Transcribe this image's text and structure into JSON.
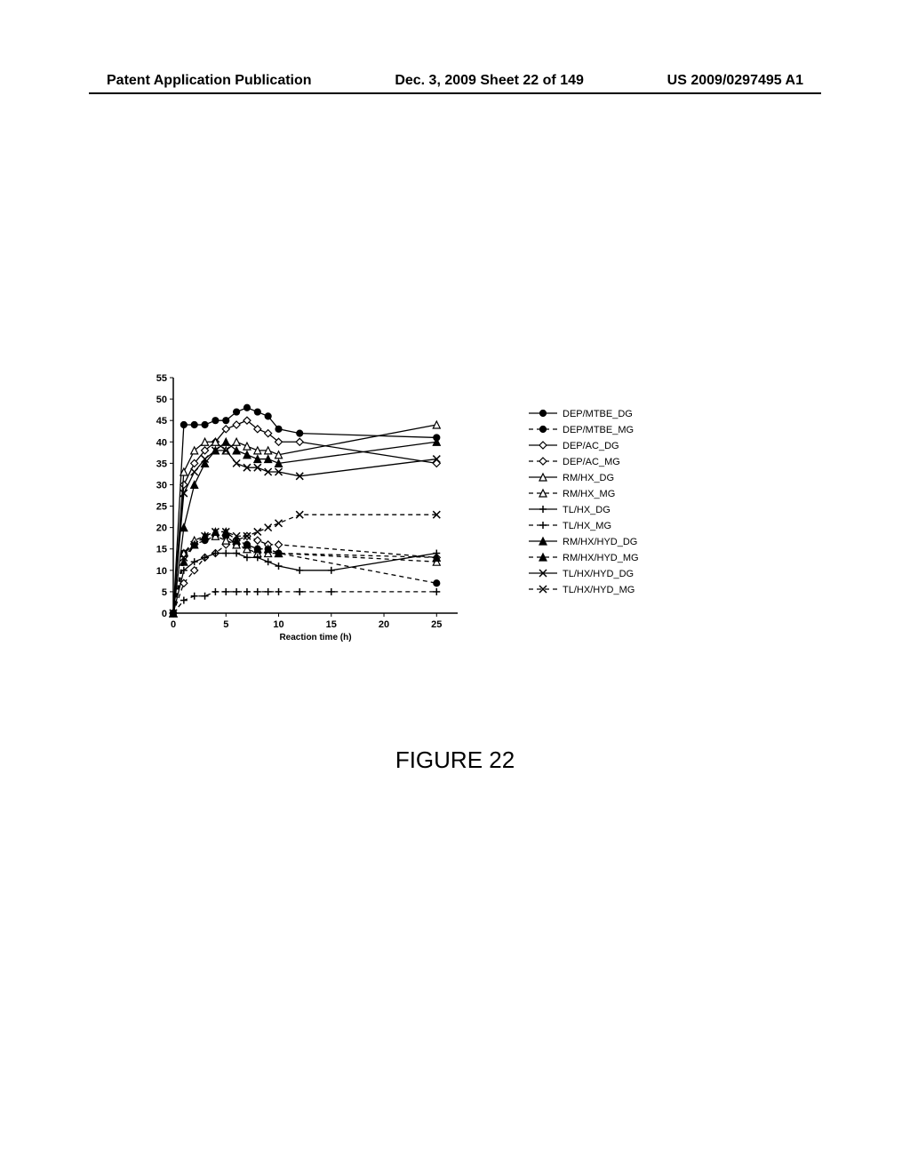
{
  "header": {
    "left": "Patent Application Publication",
    "center": "Dec. 3, 2009  Sheet 22 of 149",
    "right": "US 2009/0297495 A1"
  },
  "figure_label": "FIGURE 22",
  "chart": {
    "type": "line",
    "xlabel": "Reaction time (h)",
    "xlim": [
      0,
      27
    ],
    "ylim": [
      0,
      55
    ],
    "xticks": [
      0,
      5,
      10,
      15,
      20,
      25
    ],
    "yticks": [
      0,
      5,
      10,
      15,
      20,
      25,
      30,
      35,
      40,
      45,
      50,
      55
    ],
    "background_color": "#ffffff",
    "axis_color": "#000000",
    "series": [
      {
        "name": "DEP/MTBE_DG",
        "marker": "filled-circle",
        "dash": "solid",
        "x": [
          0,
          1,
          2,
          3,
          4,
          5,
          6,
          7,
          8,
          9,
          10,
          12,
          25
        ],
        "y": [
          0,
          44,
          44,
          44,
          45,
          45,
          47,
          48,
          47,
          46,
          43,
          42,
          41
        ]
      },
      {
        "name": "DEP/MTBE_MG",
        "marker": "filled-circle",
        "dash": "dash",
        "x": [
          0,
          1,
          2,
          3,
          4,
          5,
          6,
          7,
          8,
          9,
          10,
          25
        ],
        "y": [
          0,
          14,
          16,
          17,
          18,
          18,
          16,
          16,
          15,
          15,
          14,
          7
        ]
      },
      {
        "name": "DEP/AC_DG",
        "marker": "open-diamond",
        "dash": "solid",
        "x": [
          0,
          1,
          2,
          3,
          4,
          5,
          6,
          7,
          8,
          9,
          10,
          12,
          25
        ],
        "y": [
          0,
          30,
          35,
          38,
          40,
          43,
          44,
          45,
          43,
          42,
          40,
          40,
          35
        ]
      },
      {
        "name": "DEP/AC_MG",
        "marker": "open-diamond",
        "dash": "dash",
        "x": [
          0,
          1,
          2,
          3,
          4,
          5,
          6,
          7,
          8,
          9,
          10,
          25
        ],
        "y": [
          0,
          7,
          10,
          13,
          14,
          16,
          17,
          18,
          17,
          16,
          16,
          13
        ]
      },
      {
        "name": "RM/HX_DG",
        "marker": "open-triangle",
        "dash": "solid",
        "x": [
          0,
          1,
          2,
          3,
          4,
          5,
          6,
          7,
          8,
          9,
          10,
          25
        ],
        "y": [
          0,
          33,
          38,
          40,
          40,
          38,
          40,
          39,
          38,
          38,
          37,
          44
        ]
      },
      {
        "name": "RM/HX_MG",
        "marker": "open-triangle",
        "dash": "dash",
        "x": [
          0,
          1,
          2,
          3,
          4,
          5,
          6,
          7,
          8,
          9,
          10,
          25
        ],
        "y": [
          0,
          14,
          17,
          18,
          18,
          17,
          16,
          15,
          14,
          14,
          14,
          12
        ]
      },
      {
        "name": "TL/HX_DG",
        "marker": "plus",
        "dash": "solid",
        "x": [
          0,
          1,
          2,
          3,
          4,
          5,
          6,
          7,
          8,
          9,
          10,
          12,
          15,
          25
        ],
        "y": [
          0,
          10,
          12,
          13,
          14,
          14,
          14,
          13,
          13,
          12,
          11,
          10,
          10,
          14
        ]
      },
      {
        "name": "TL/HX_MG",
        "marker": "plus",
        "dash": "dash",
        "x": [
          0,
          1,
          2,
          3,
          4,
          5,
          6,
          7,
          8,
          9,
          10,
          12,
          15,
          25
        ],
        "y": [
          0,
          3,
          4,
          4,
          5,
          5,
          5,
          5,
          5,
          5,
          5,
          5,
          5,
          5
        ]
      },
      {
        "name": "RM/HX/HYD_DG",
        "marker": "filled-triangle",
        "dash": "solid",
        "x": [
          0,
          1,
          2,
          3,
          4,
          5,
          6,
          7,
          8,
          9,
          10,
          25
        ],
        "y": [
          0,
          20,
          30,
          35,
          38,
          40,
          38,
          37,
          36,
          36,
          35,
          40
        ]
      },
      {
        "name": "RM/HX/HYD_MG",
        "marker": "filled-triangle",
        "dash": "dash",
        "x": [
          0,
          1,
          2,
          3,
          4,
          5,
          6,
          7,
          8,
          9,
          10,
          25
        ],
        "y": [
          0,
          12,
          16,
          18,
          19,
          19,
          17,
          16,
          15,
          15,
          14,
          13
        ]
      },
      {
        "name": "TL/HX/HYD_DG",
        "marker": "x",
        "dash": "solid",
        "x": [
          0,
          1,
          2,
          3,
          4,
          5,
          6,
          7,
          8,
          9,
          10,
          12,
          25
        ],
        "y": [
          0,
          28,
          33,
          36,
          38,
          38,
          35,
          34,
          34,
          33,
          33,
          32,
          36
        ]
      },
      {
        "name": "TL/HX/HYD_MG",
        "marker": "x",
        "dash": "dash",
        "x": [
          0,
          1,
          2,
          3,
          4,
          5,
          6,
          7,
          8,
          9,
          10,
          12,
          25
        ],
        "y": [
          0,
          13,
          16,
          18,
          19,
          19,
          18,
          18,
          19,
          20,
          21,
          23,
          23
        ]
      }
    ]
  }
}
